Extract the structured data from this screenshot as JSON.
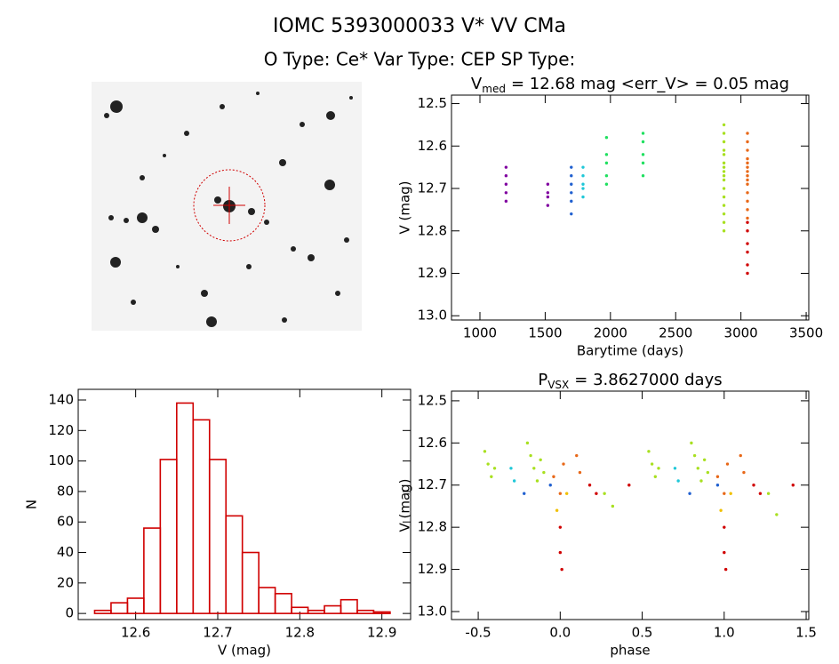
{
  "header": {
    "title": "IOMC 5393000033   V* VV CMa",
    "subtitle": "O Type: Ce*  Var Type: CEP  SP Type:"
  },
  "chart_data": [
    {
      "type": "scatter",
      "title": "V",
      "title_sub": "med",
      "title_rest": "= 12.68 mag <err_V> = 0.05 mag",
      "x_label": "Barytime (days)",
      "y_label": "V (mag)",
      "xlim": [
        782,
        3520
      ],
      "ylim": [
        12.48,
        13.01
      ],
      "y_inverted": true,
      "xticks": [
        1000,
        1500,
        2000,
        2500,
        3000,
        3500
      ],
      "yticks": [
        12.5,
        12.6,
        12.7,
        12.8,
        12.9,
        {
          "value": 13,
          "label": "13.0"
        }
      ],
      "series": [
        {
          "color": "#8000a0",
          "x": [
            1200,
            1200,
            1200,
            1200,
            1200,
            1520,
            1520,
            1520,
            1520
          ],
          "values": [
            12.65,
            12.67,
            12.69,
            12.71,
            12.73,
            12.69,
            12.71,
            12.72,
            12.74
          ]
        },
        {
          "color": "#2060d0",
          "x": [
            1700,
            1700,
            1700,
            1700,
            1700,
            1700
          ],
          "values": [
            12.65,
            12.67,
            12.69,
            12.71,
            12.73,
            12.76
          ]
        },
        {
          "color": "#20c8d8",
          "x": [
            1790,
            1790,
            1790,
            1790,
            1790
          ],
          "values": [
            12.65,
            12.67,
            12.69,
            12.7,
            12.72
          ]
        },
        {
          "color": "#20e060",
          "x": [
            1970,
            1970,
            1970,
            1970,
            1970,
            2250,
            2250,
            2250,
            2250,
            2250
          ],
          "values": [
            12.58,
            12.62,
            12.64,
            12.67,
            12.69,
            12.57,
            12.59,
            12.62,
            12.64,
            12.67
          ]
        },
        {
          "color": "#a8e020",
          "x": [
            2870,
            2870,
            2870,
            2870,
            2870,
            2870,
            2870,
            2870,
            2870,
            2870,
            2870,
            2870,
            2870,
            2870,
            2870,
            2870
          ],
          "values": [
            12.55,
            12.57,
            12.59,
            12.61,
            12.62,
            12.64,
            12.65,
            12.66,
            12.67,
            12.68,
            12.7,
            12.72,
            12.74,
            12.76,
            12.78,
            12.8
          ]
        },
        {
          "color": "#e86818",
          "x": [
            3050,
            3050,
            3050,
            3050,
            3050,
            3050,
            3050,
            3050,
            3050,
            3050,
            3050,
            3050,
            3050,
            3050
          ],
          "values": [
            12.57,
            12.59,
            12.61,
            12.63,
            12.64,
            12.65,
            12.66,
            12.67,
            12.68,
            12.69,
            12.71,
            12.73,
            12.75,
            12.77
          ]
        },
        {
          "color": "#d00000",
          "x": [
            3050,
            3050,
            3050,
            3050,
            3050,
            3050
          ],
          "values": [
            12.78,
            12.8,
            12.83,
            12.85,
            12.88,
            12.9
          ]
        }
      ]
    },
    {
      "type": "histogram",
      "x_label": "V (mag)",
      "y_label": "N",
      "color": "#d00000",
      "bins": [
        12.55,
        12.57,
        12.59,
        12.61,
        12.63,
        12.65,
        12.67,
        12.69,
        12.71,
        12.73,
        12.75,
        12.77,
        12.79,
        12.81,
        12.83,
        12.85,
        12.87,
        12.89,
        12.91
      ],
      "values": [
        2,
        7,
        10,
        56,
        101,
        138,
        127,
        101,
        64,
        40,
        17,
        13,
        4,
        2,
        5,
        9,
        2,
        1
      ],
      "xlim": [
        12.53,
        12.935
      ],
      "ylim": [
        -4,
        147
      ],
      "xticks": [
        12.6,
        12.7,
        12.8,
        12.9
      ],
      "yticks": [
        0,
        20,
        40,
        60,
        80,
        100,
        120,
        140
      ]
    },
    {
      "type": "scatter",
      "title": "P",
      "title_sub": "VSX",
      "title_rest": "= 3.8627000 days",
      "x_label": "phase",
      "y_label": "V (mag)",
      "xlim": [
        -0.663,
        1.516
      ],
      "ylim": [
        12.477,
        13.019
      ],
      "y_inverted": true,
      "xticks": [
        -0.5,
        {
          "value": 0,
          "label": "0.0"
        },
        0.5,
        {
          "value": 1,
          "label": "1.0"
        },
        1.5
      ],
      "yticks": [
        12.5,
        12.6,
        12.7,
        12.8,
        12.9,
        {
          "value": 13,
          "label": "13.0"
        }
      ],
      "series": [
        {
          "color": "#a8e020",
          "x": [
            -0.46,
            -0.44,
            -0.42,
            -0.4,
            -0.2,
            -0.18,
            -0.16,
            -0.14,
            -0.12,
            -0.1,
            0.54,
            0.56,
            0.58,
            0.6,
            0.8,
            0.82,
            0.84,
            0.86,
            0.88,
            0.9,
            0.27,
            0.32,
            1.27,
            1.32
          ],
          "values": [
            12.62,
            12.65,
            12.68,
            12.66,
            12.6,
            12.63,
            12.66,
            12.69,
            12.64,
            12.67,
            12.62,
            12.65,
            12.68,
            12.66,
            12.6,
            12.63,
            12.66,
            12.69,
            12.64,
            12.67,
            12.72,
            12.75,
            12.72,
            12.77
          ]
        },
        {
          "color": "#20c8d8",
          "x": [
            -0.3,
            -0.28,
            0.7,
            0.72
          ],
          "values": [
            12.66,
            12.69,
            12.66,
            12.69
          ]
        },
        {
          "color": "#2060d0",
          "x": [
            -0.22,
            -0.06,
            0.79,
            0.96
          ],
          "values": [
            12.72,
            12.7,
            12.72,
            12.7
          ]
        },
        {
          "color": "#e86818",
          "x": [
            -0.04,
            0,
            0.02,
            0.1,
            0.12,
            0.96,
            1,
            1.02,
            1.1,
            1.12
          ],
          "values": [
            12.68,
            12.72,
            12.65,
            12.63,
            12.67,
            12.68,
            12.72,
            12.65,
            12.63,
            12.67
          ]
        },
        {
          "color": "#f0c000",
          "x": [
            -0.02,
            0.04,
            0.98,
            1.04
          ],
          "values": [
            12.76,
            12.72,
            12.76,
            12.72
          ]
        },
        {
          "color": "#d00000",
          "x": [
            0,
            0,
            0.01,
            0.18,
            0.22,
            0.42,
            1,
            1,
            1.01,
            1.18,
            1.22,
            1.42
          ],
          "values": [
            12.8,
            12.86,
            12.9,
            12.7,
            12.72,
            12.7,
            12.8,
            12.86,
            12.9,
            12.7,
            12.72,
            12.7
          ]
        }
      ]
    }
  ]
}
